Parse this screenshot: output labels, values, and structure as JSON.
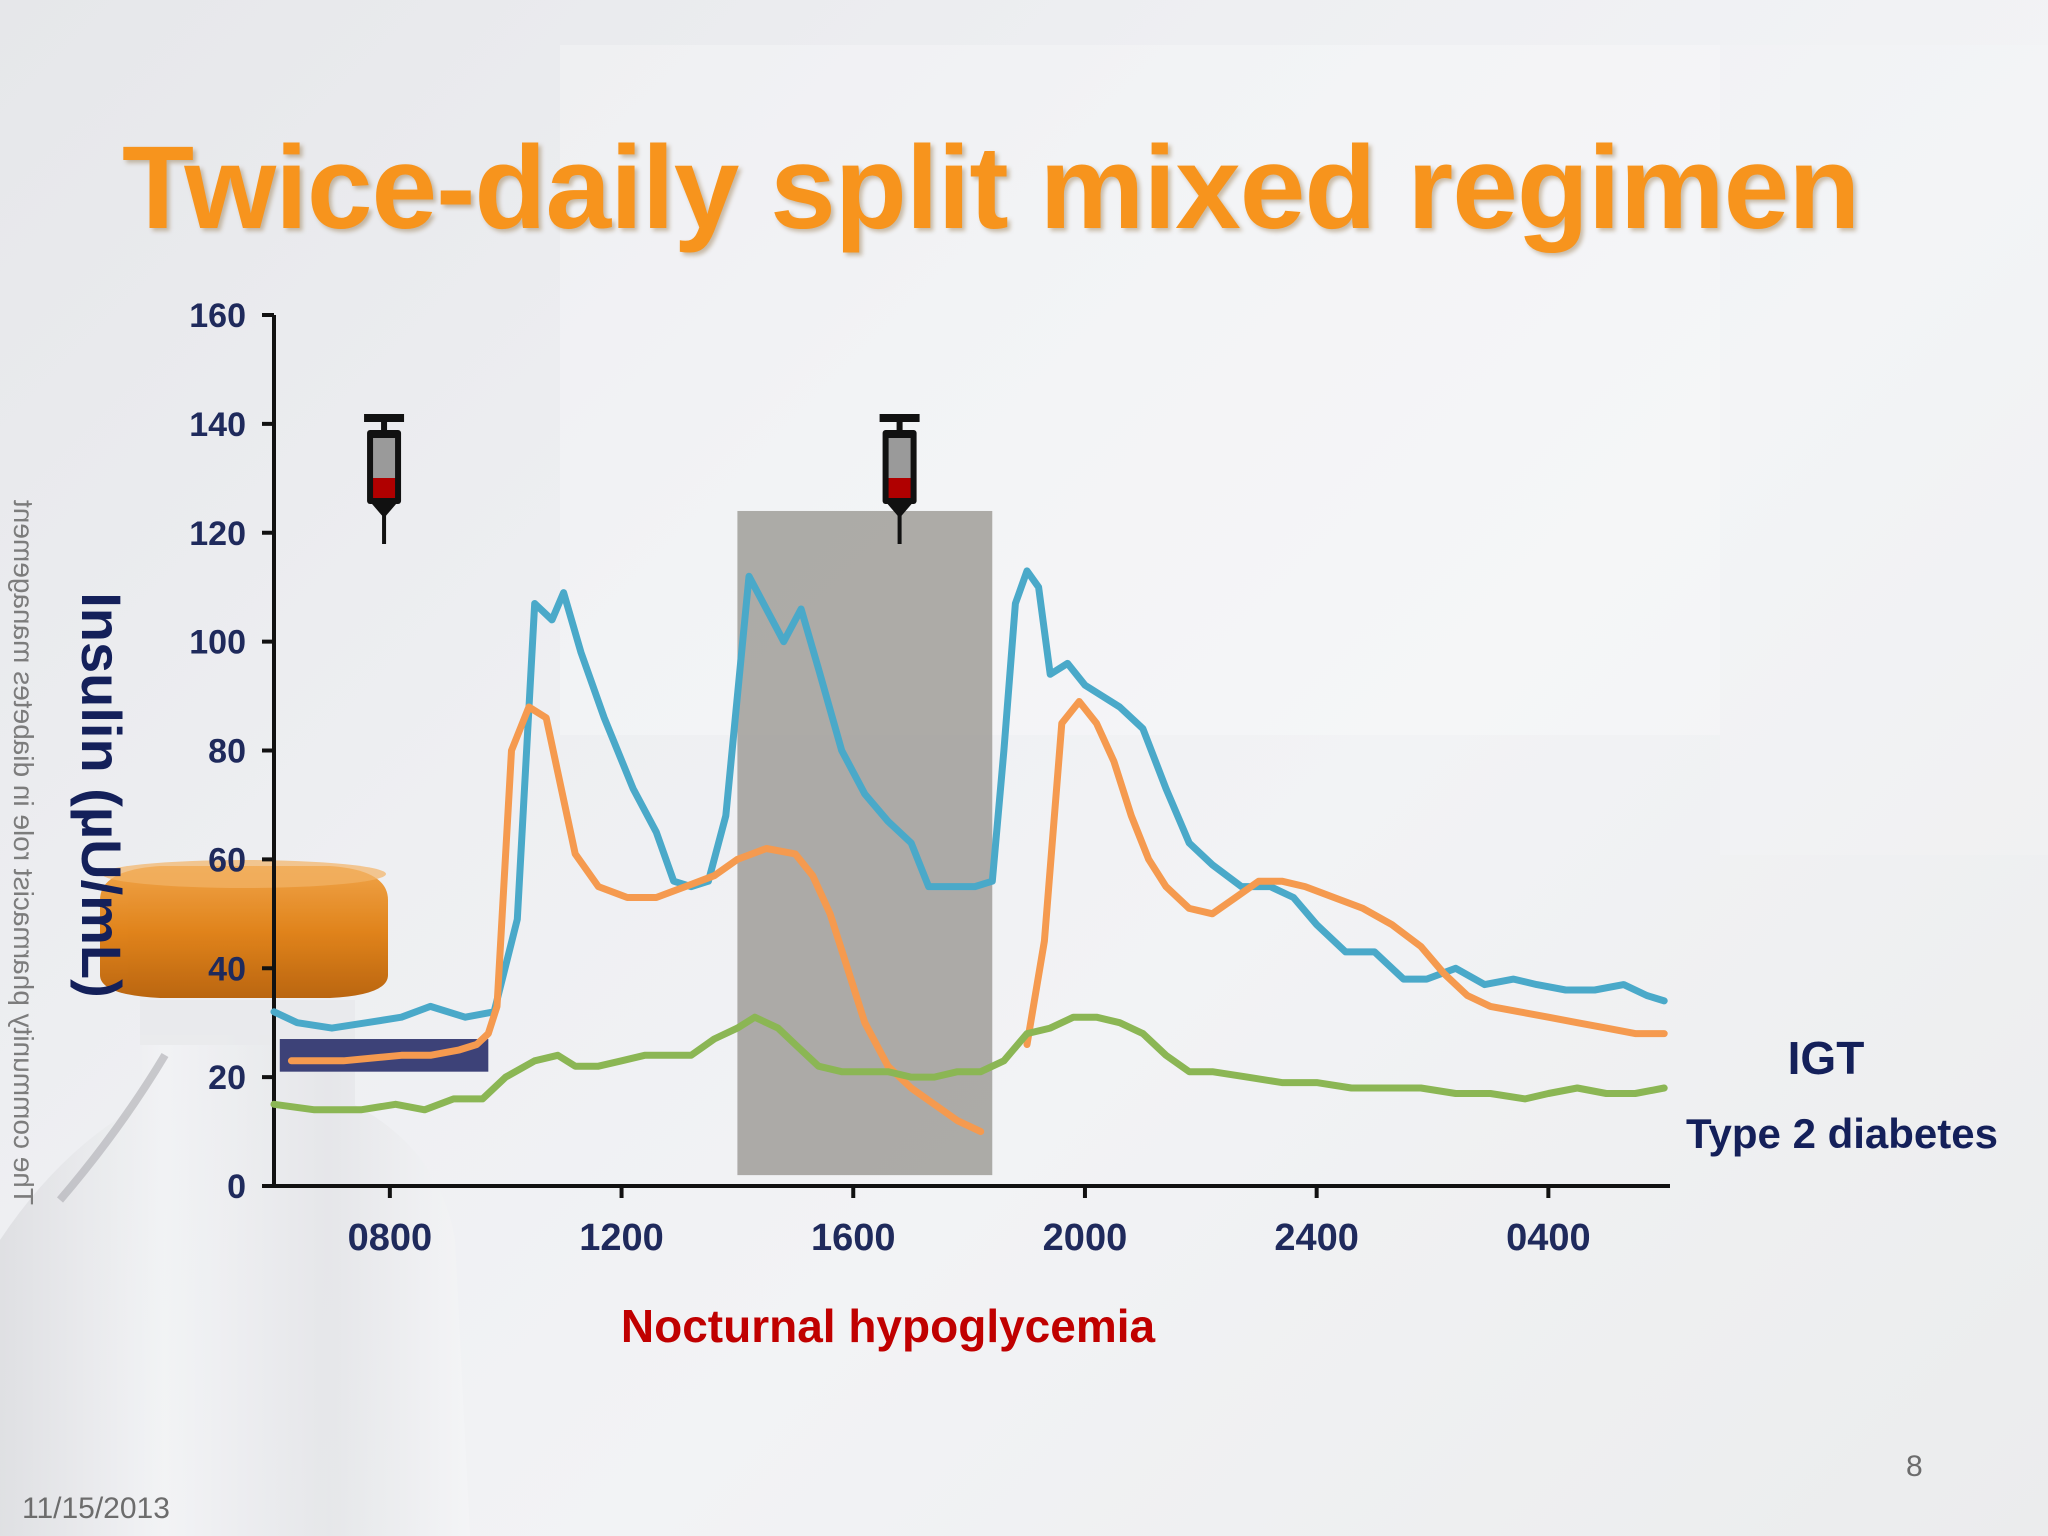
{
  "slide": {
    "title": "Twice-daily split mixed regimen",
    "side_note": "The community pharmacist role in diabetes management",
    "date": "11/15/2013",
    "page_number": "8",
    "hypoglycemia_label": "Nocturnal hypoglycemia"
  },
  "chart_data": {
    "type": "line",
    "title": "Twice-daily split mixed regimen",
    "ylabel": "Insulin (µU/mL)",
    "xlabel": "",
    "x_tick_labels": [
      "0800",
      "1200",
      "1600",
      "2000",
      "2400",
      "0400"
    ],
    "x_tick_hours": [
      8,
      12,
      16,
      20,
      24,
      28
    ],
    "xlim_hours": [
      6,
      30.1
    ],
    "ylim": [
      0,
      160
    ],
    "y_ticks": [
      0,
      20,
      40,
      60,
      80,
      100,
      120,
      140,
      160
    ],
    "grid": false,
    "legend": [
      {
        "label": "IGT",
        "color": "#4aa9c9"
      },
      {
        "label": "Type 2 diabetes",
        "color": "#f59a4f"
      }
    ],
    "injections_at_hours": [
      7.9,
      16.8
    ],
    "shaded_region": {
      "x_hours": [
        14.0,
        18.4
      ],
      "y": [
        2,
        124
      ],
      "color": "#a09e99"
    },
    "basal_bar": {
      "x_hours": [
        6.1,
        9.7
      ],
      "y": [
        21,
        27
      ],
      "color": "#3d4278"
    },
    "series": [
      {
        "color": "#4aa9c9",
        "x": [
          6.0,
          6.4,
          7.0,
          7.6,
          8.2,
          8.7,
          9.3,
          9.8,
          10.2,
          10.5,
          10.8,
          11.0,
          11.3,
          11.7,
          12.2,
          12.6,
          12.9,
          13.2,
          13.5,
          13.8,
          14.2,
          14.5,
          14.8,
          15.1,
          15.4,
          15.8,
          16.2,
          16.6,
          17.0,
          17.3,
          17.7,
          18.1,
          18.4,
          18.6,
          18.8,
          19.0,
          19.2,
          19.4,
          19.7,
          20.0,
          20.3,
          20.6,
          21.0,
          21.4,
          21.8,
          22.2,
          22.7,
          23.2,
          23.6,
          24.0,
          24.5,
          25.0,
          25.5,
          25.9,
          26.4,
          26.9,
          27.4,
          27.8,
          28.3,
          28.8,
          29.3,
          29.7,
          30.0
        ],
        "y": [
          32,
          30,
          29,
          30,
          31,
          33,
          31,
          32,
          49,
          107,
          104,
          109,
          98,
          86,
          73,
          65,
          56,
          55,
          56,
          68,
          112,
          106,
          100,
          106,
          95,
          80,
          72,
          67,
          63,
          55,
          55,
          55,
          56,
          80,
          107,
          113,
          110,
          94,
          96,
          92,
          90,
          88,
          84,
          73,
          63,
          59,
          55,
          55,
          53,
          48,
          43,
          43,
          38,
          38,
          40,
          37,
          38,
          37,
          36,
          36,
          37,
          35,
          34
        ]
      },
      {
        "color": "#f59a4f",
        "x": [
          6.3,
          7.2,
          8.2,
          8.7,
          9.2,
          9.5,
          9.7,
          9.85,
          10.1,
          10.4,
          10.7,
          10.9,
          11.2,
          11.6,
          12.1,
          12.6,
          13.1,
          13.6,
          14.0,
          14.5,
          15.0,
          15.3,
          15.6,
          15.9,
          16.2,
          16.6,
          17.0,
          17.4,
          17.8,
          18.2,
          18.6,
          19.0,
          19.3,
          19.6,
          19.9,
          20.2,
          20.5,
          20.8,
          21.1,
          21.4,
          21.8,
          22.2,
          22.6,
          23.0,
          23.4,
          23.8,
          24.3,
          24.8,
          25.3,
          25.8,
          26.2,
          26.6,
          27.0,
          27.5,
          28.0,
          28.5,
          29.0,
          29.5,
          30.0
        ],
        "y": [
          23,
          23,
          24,
          24,
          25,
          26,
          28,
          33,
          80,
          88,
          86,
          76,
          61,
          55,
          53,
          53,
          55,
          57,
          60,
          62,
          61,
          57,
          50,
          40,
          30,
          22,
          18,
          15,
          12,
          10,
          null,
          26,
          45,
          85,
          89,
          85,
          78,
          68,
          60,
          55,
          51,
          50,
          53,
          56,
          56,
          55,
          53,
          51,
          48,
          44,
          39,
          35,
          33,
          32,
          31,
          30,
          29,
          28,
          28
        ]
      },
      {
        "color": "#8bb654",
        "x": [
          6.0,
          6.7,
          7.5,
          8.1,
          8.6,
          9.1,
          9.6,
          10.0,
          10.5,
          10.9,
          11.2,
          11.6,
          12.0,
          12.4,
          12.8,
          13.2,
          13.6,
          14.0,
          14.3,
          14.7,
          15.0,
          15.4,
          15.8,
          16.2,
          16.6,
          17.0,
          17.4,
          17.8,
          18.2,
          18.6,
          19.0,
          19.4,
          19.8,
          20.2,
          20.6,
          21.0,
          21.4,
          21.8,
          22.2,
          22.8,
          23.4,
          24.0,
          24.6,
          25.2,
          25.8,
          26.4,
          27.0,
          27.6,
          28.0,
          28.5,
          29.0,
          29.5,
          30.0
        ],
        "y": [
          15,
          14,
          14,
          15,
          14,
          16,
          16,
          20,
          23,
          24,
          22,
          22,
          23,
          24,
          24,
          24,
          27,
          29,
          31,
          29,
          26,
          22,
          21,
          21,
          21,
          20,
          20,
          21,
          21,
          23,
          28,
          29,
          31,
          31,
          30,
          28,
          24,
          21,
          21,
          20,
          19,
          19,
          18,
          18,
          18,
          17,
          17,
          16,
          17,
          18,
          17,
          17,
          18
        ]
      }
    ]
  },
  "icons": {
    "vial": "insulin-vial",
    "syringe": "syringe-icon"
  }
}
